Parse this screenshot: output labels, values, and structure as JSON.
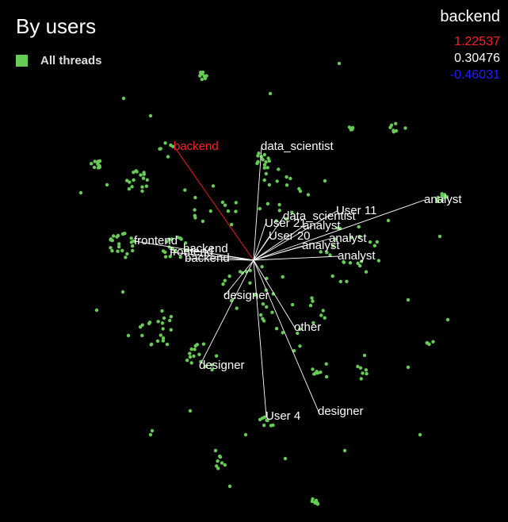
{
  "header": {
    "title": "By users"
  },
  "legend": {
    "label": "All threads",
    "color": "#66cc55"
  },
  "scale": {
    "title": "backend",
    "max": "1.22537",
    "mid": "0.30476",
    "min": "-0.46031",
    "colors": {
      "max": "#ff2020",
      "mid": "#ffffff",
      "min": "#2020ff"
    }
  },
  "chart_data": {
    "type": "scatter",
    "title": "By users",
    "legend": [
      "All threads"
    ],
    "point_color": "#66cc55",
    "center": [
      0,
      0
    ],
    "xlim": [
      -320,
      320
    ],
    "ylim": [
      -330,
      330
    ],
    "clusters": [
      {
        "cx": -65,
        "cy": 232,
        "n": 9,
        "r": 6
      },
      {
        "cx": -198,
        "cy": 120,
        "n": 10,
        "r": 7
      },
      {
        "cx": -145,
        "cy": 100,
        "n": 16,
        "r": 16
      },
      {
        "cx": -110,
        "cy": 138,
        "n": 6,
        "r": 10
      },
      {
        "cx": 12,
        "cy": 125,
        "n": 14,
        "r": 12
      },
      {
        "cx": 182,
        "cy": 166,
        "n": 7,
        "r": 10
      },
      {
        "cx": 120,
        "cy": 168,
        "n": 4,
        "r": 6
      },
      {
        "cx": 235,
        "cy": 80,
        "n": 9,
        "r": 9
      },
      {
        "cx": -165,
        "cy": 17,
        "n": 22,
        "r": 18
      },
      {
        "cx": -100,
        "cy": 15,
        "n": 16,
        "r": 16
      },
      {
        "cx": -120,
        "cy": -85,
        "n": 20,
        "r": 24
      },
      {
        "cx": -65,
        "cy": -125,
        "n": 16,
        "r": 20
      },
      {
        "cx": 85,
        "cy": -140,
        "n": 8,
        "r": 12
      },
      {
        "cx": 135,
        "cy": -140,
        "n": 6,
        "r": 10
      },
      {
        "cx": 222,
        "cy": -105,
        "n": 4,
        "r": 5
      },
      {
        "cx": 15,
        "cy": -205,
        "n": 8,
        "r": 10
      },
      {
        "cx": -42,
        "cy": -255,
        "n": 7,
        "r": 8
      },
      {
        "cx": 78,
        "cy": -305,
        "n": 8,
        "r": 6
      },
      {
        "cx": 120,
        "cy": 10,
        "n": 24,
        "r": 40
      },
      {
        "cx": 35,
        "cy": 80,
        "n": 18,
        "r": 35
      },
      {
        "cx": 0,
        "cy": -40,
        "n": 22,
        "r": 45
      },
      {
        "cx": -60,
        "cy": 60,
        "n": 14,
        "r": 40
      },
      {
        "cx": 60,
        "cy": -80,
        "n": 14,
        "r": 40
      }
    ],
    "scattered": [
      [
        -164,
        204
      ],
      [
        108,
        248
      ],
      [
        21,
        210
      ],
      [
        -198,
        -63
      ],
      [
        -130,
        182
      ],
      [
        -185,
        95
      ],
      [
        -218,
        85
      ],
      [
        -165,
        -40
      ],
      [
        -158,
        -95
      ],
      [
        -80,
        -190
      ],
      [
        -128,
        -215
      ],
      [
        115,
        -240
      ],
      [
        -48,
        -240
      ],
      [
        -130,
        -220
      ],
      [
        210,
        -220
      ],
      [
        235,
        30
      ],
      [
        245,
        -75
      ],
      [
        195,
        -50
      ],
      [
        140,
        -120
      ],
      [
        195,
        -135
      ],
      [
        -30,
        -285
      ],
      [
        40,
        -250
      ],
      [
        90,
        100
      ],
      [
        170,
        50
      ],
      [
        -10,
        -220
      ]
    ],
    "vectors": [
      {
        "label": "backend",
        "x": -100,
        "y": 143,
        "highlight": true
      },
      {
        "label": "data_scientist",
        "x": 10,
        "y": 143
      },
      {
        "label": "analyst",
        "x": 216,
        "y": 76
      },
      {
        "label": "User 11",
        "x": 105,
        "y": 62
      },
      {
        "label": "data_scientist",
        "x": 38,
        "y": 55
      },
      {
        "label": "User 21",
        "x": 15,
        "y": 46
      },
      {
        "label": "analyst",
        "x": 63,
        "y": 43
      },
      {
        "label": "User 20",
        "x": 20,
        "y": 30
      },
      {
        "label": "analyst",
        "x": 96,
        "y": 27
      },
      {
        "label": "analyst",
        "x": 62,
        "y": 18
      },
      {
        "label": "analyst",
        "x": 107,
        "y": 5
      },
      {
        "label": "frontend",
        "x": -150,
        "y": 24
      },
      {
        "label": "frontend",
        "x": -105,
        "y": 10
      },
      {
        "label": "backend",
        "x": -88,
        "y": 14
      },
      {
        "label": "backend",
        "x": -86,
        "y": 2
      },
      {
        "label": "designer",
        "x": -37,
        "y": -45
      },
      {
        "label": "other",
        "x": 52,
        "y": -85
      },
      {
        "label": "designer",
        "x": -68,
        "y": -133
      },
      {
        "label": "designer",
        "x": 82,
        "y": -191
      },
      {
        "label": "User 4",
        "x": 16,
        "y": -197
      }
    ]
  }
}
